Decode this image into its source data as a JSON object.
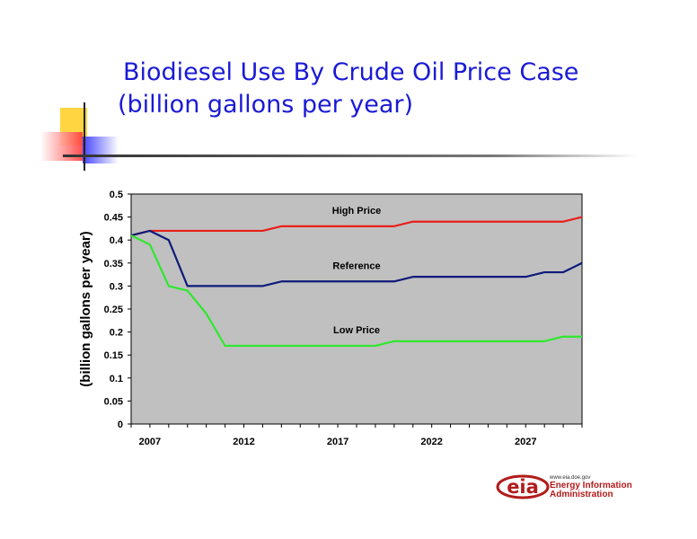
{
  "slide": {
    "title_line1": "Biodiesel Use By Crude Oil Price Case",
    "title_line2": "(billion gallons per year)"
  },
  "logo": {
    "mark": "eia",
    "url": "www.eia.doe.gov",
    "line1": "Energy Information",
    "line2": "Administration"
  },
  "colors": {
    "title": "#1a1ad6",
    "plot_bg": "#c0c0c0",
    "high": "#e8201c",
    "reference": "#0e1a7a",
    "low": "#2ee82e",
    "logo": "#b21b1b"
  },
  "chart_data": {
    "type": "line",
    "title": "",
    "xlabel": "",
    "ylabel": "(billion gallons per year)",
    "ylim": [
      0,
      0.5
    ],
    "yticks": [
      "0",
      "0.05",
      "0.1",
      "0.15",
      "0.2",
      "0.25",
      "0.3",
      "0.35",
      "0.4",
      "0.45",
      "0.5"
    ],
    "xlim": [
      2006,
      2030
    ],
    "xticks": [
      "2007",
      "2012",
      "2017",
      "2022",
      "2027"
    ],
    "grid": false,
    "legend": "inline labels",
    "x": [
      2006,
      2007,
      2008,
      2009,
      2010,
      2011,
      2012,
      2013,
      2014,
      2015,
      2016,
      2017,
      2018,
      2019,
      2020,
      2021,
      2022,
      2023,
      2024,
      2025,
      2026,
      2027,
      2028,
      2029,
      2030
    ],
    "series": [
      {
        "name": "High Price",
        "color": "#e8201c",
        "values": [
          0.41,
          0.42,
          0.42,
          0.42,
          0.42,
          0.42,
          0.42,
          0.42,
          0.43,
          0.43,
          0.43,
          0.43,
          0.43,
          0.43,
          0.43,
          0.44,
          0.44,
          0.44,
          0.44,
          0.44,
          0.44,
          0.44,
          0.44,
          0.44,
          0.45
        ]
      },
      {
        "name": "Reference",
        "color": "#0e1a7a",
        "values": [
          0.41,
          0.42,
          0.4,
          0.3,
          0.3,
          0.3,
          0.3,
          0.3,
          0.31,
          0.31,
          0.31,
          0.31,
          0.31,
          0.31,
          0.31,
          0.32,
          0.32,
          0.32,
          0.32,
          0.32,
          0.32,
          0.32,
          0.33,
          0.33,
          0.35
        ]
      },
      {
        "name": "Low Price",
        "color": "#2ee82e",
        "values": [
          0.41,
          0.39,
          0.3,
          0.29,
          0.24,
          0.17,
          0.17,
          0.17,
          0.17,
          0.17,
          0.17,
          0.17,
          0.17,
          0.17,
          0.18,
          0.18,
          0.18,
          0.18,
          0.18,
          0.18,
          0.18,
          0.18,
          0.18,
          0.19,
          0.19
        ]
      }
    ]
  }
}
